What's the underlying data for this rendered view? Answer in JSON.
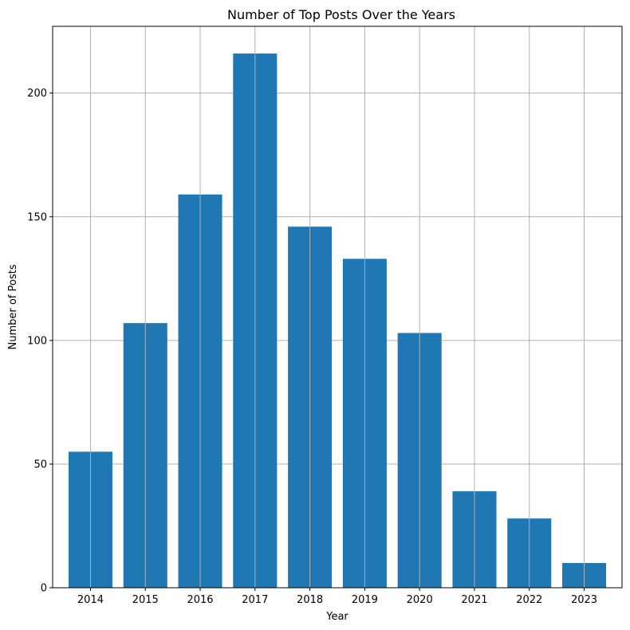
{
  "chart_data": {
    "type": "bar",
    "title": "Number of Top Posts Over the Years",
    "xlabel": "Year",
    "ylabel": "Number of Posts",
    "categories": [
      "2014",
      "2015",
      "2016",
      "2017",
      "2018",
      "2019",
      "2020",
      "2021",
      "2022",
      "2023"
    ],
    "values": [
      55,
      107,
      159,
      216,
      146,
      133,
      103,
      39,
      28,
      10
    ],
    "ylim": [
      0,
      227
    ],
    "yticks": [
      0,
      50,
      100,
      150,
      200
    ],
    "grid": true,
    "legend": "none",
    "bar_color": "#1f77b4",
    "grid_color": "#b0b0b0",
    "axis_color": "#000000"
  }
}
